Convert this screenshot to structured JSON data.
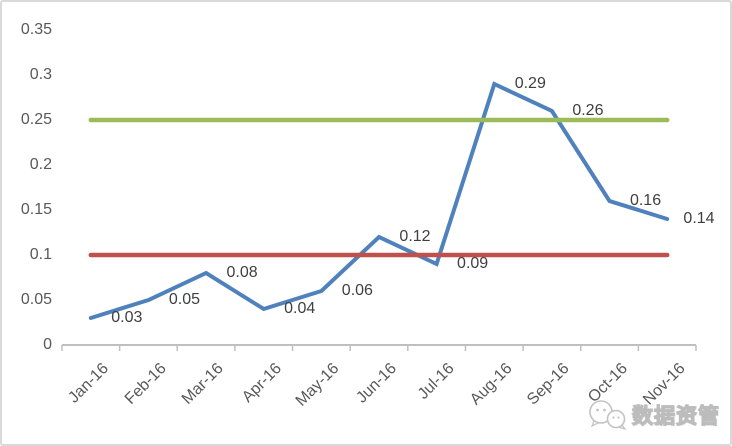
{
  "chart_data": {
    "type": "line",
    "title": "",
    "xlabel": "",
    "ylabel": "",
    "categories": [
      "Jan-16",
      "Feb-16",
      "Mar-16",
      "Apr-16",
      "May-16",
      "Jun-16",
      "Jul-16",
      "Aug-16",
      "Sep-16",
      "Oct-16",
      "Nov-16"
    ],
    "series": [
      {
        "name": "monthly-value",
        "type": "line",
        "color": "#4F81BD",
        "values": [
          0.03,
          0.05,
          0.08,
          0.04,
          0.06,
          0.12,
          0.09,
          0.29,
          0.26,
          0.16,
          0.14
        ],
        "data_labels": [
          "0.03",
          "0.05",
          "0.08",
          "0.04",
          "0.06",
          "0.12",
          "0.09",
          "0.29",
          "0.26",
          "0.16",
          "0.14"
        ]
      },
      {
        "name": "upper-threshold-line",
        "type": "constant-line",
        "color": "#9BBB59",
        "value": 0.25
      },
      {
        "name": "lower-threshold-line",
        "type": "constant-line",
        "color": "#C0504D",
        "value": 0.1
      }
    ],
    "ylim": [
      0,
      0.35
    ],
    "y_tick_labels": [
      "0",
      "0.05",
      "0.1",
      "0.15",
      "0.2",
      "0.25",
      "0.3",
      "0.35"
    ],
    "y_tick_step": 0.05,
    "x_label_rotation_deg": 45,
    "grid": "off",
    "legend": "none",
    "axis_line_color": "#BFBFBF",
    "axis_text_color": "#595959",
    "data_label_color": "#3F3F3F"
  },
  "watermark": {
    "text": "数据资管",
    "icon": "chat-bubbles-icon"
  },
  "frame": {
    "border_color": "#D9D9D9",
    "background_color": "#FFFFFF"
  }
}
